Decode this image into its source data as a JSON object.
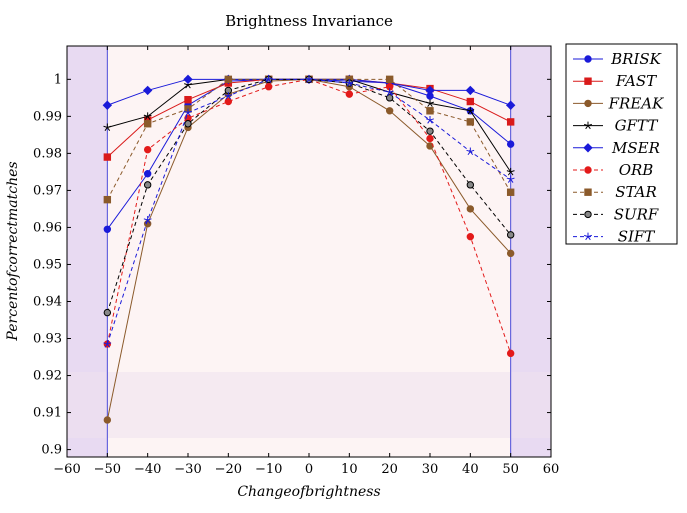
{
  "chart_data": {
    "type": "line",
    "title": "Brightness Invariance",
    "xlabel": "Changeofbrightness",
    "ylabel": "Percentofcorrectmatches",
    "xlim": [
      -60,
      60
    ],
    "ylim": [
      0.898,
      1.009
    ],
    "xticks": [
      "−60",
      "−50",
      "−40",
      "−30",
      "−20",
      "−10",
      "0",
      "10",
      "20",
      "30",
      "40",
      "50",
      "60"
    ],
    "xtick_values": [
      -60,
      -50,
      -40,
      -30,
      -20,
      -10,
      0,
      10,
      20,
      30,
      40,
      50,
      60
    ],
    "yticks": [
      "0.9",
      "0.91",
      "0.92",
      "0.93",
      "0.94",
      "0.95",
      "0.96",
      "0.97",
      "0.98",
      "0.99",
      "1"
    ],
    "ytick_values": [
      0.9,
      0.91,
      0.92,
      0.93,
      0.94,
      0.95,
      0.96,
      0.97,
      0.98,
      0.99,
      1.0
    ],
    "x": [
      -50,
      -40,
      -30,
      -20,
      -10,
      0,
      10,
      20,
      30,
      40,
      50
    ],
    "legend_position": "outside-right-top",
    "grid": false,
    "series": [
      {
        "name": "BRISK",
        "color": "#1a1ad9",
        "marker": "circle",
        "dashed": false,
        "values": [
          0.9595,
          0.9745,
          0.993,
          0.9995,
          1.0,
          1.0,
          0.9995,
          0.999,
          0.9955,
          0.9915,
          0.9825
        ]
      },
      {
        "name": "FAST",
        "color": "#d91a1a",
        "marker": "square",
        "dashed": false,
        "values": [
          0.979,
          0.989,
          0.9945,
          0.999,
          1.0,
          1.0,
          1.0,
          0.999,
          0.9975,
          0.994,
          0.9885
        ]
      },
      {
        "name": "FREAK",
        "color": "#8b5a2b",
        "marker": "circle",
        "dashed": false,
        "values": [
          0.908,
          0.961,
          0.987,
          0.996,
          0.9995,
          1.0,
          0.998,
          0.9915,
          0.982,
          0.965,
          0.953
        ]
      },
      {
        "name": "GFTT",
        "color": "#000000",
        "marker": "star",
        "dashed": false,
        "values": [
          0.987,
          0.99,
          0.9985,
          1.0,
          1.0,
          1.0,
          1.0,
          0.9965,
          0.9935,
          0.9915,
          0.975
        ]
      },
      {
        "name": "MSER",
        "color": "#1a1ad9",
        "marker": "diamond",
        "dashed": false,
        "values": [
          0.993,
          0.997,
          1.0,
          1.0,
          1.0,
          1.0,
          1.0,
          0.999,
          0.997,
          0.997,
          0.993
        ]
      },
      {
        "name": "ORB",
        "color": "#e31a1a",
        "marker": "circle",
        "dashed": true,
        "values": [
          0.9285,
          0.981,
          0.9895,
          0.994,
          0.998,
          1.0,
          0.996,
          0.998,
          0.984,
          0.9575,
          0.926
        ]
      },
      {
        "name": "STAR",
        "color": "#8b5a2b",
        "marker": "square",
        "dashed": true,
        "values": [
          0.9675,
          0.988,
          0.992,
          1.0,
          1.0,
          1.0,
          1.0,
          1.0,
          0.9915,
          0.9885,
          0.9695
        ]
      },
      {
        "name": "SURF",
        "color": "#000000",
        "marker": "circle-open",
        "dashed": true,
        "values": [
          0.937,
          0.9715,
          0.988,
          0.997,
          1.0,
          1.0,
          0.999,
          0.995,
          0.986,
          0.9715,
          0.958
        ]
      },
      {
        "name": "SIFT",
        "color": "#1a1ad9",
        "marker": "star",
        "dashed": true,
        "values": [
          0.9285,
          0.962,
          0.991,
          0.9955,
          1.0,
          1.0,
          0.999,
          0.9965,
          0.989,
          0.9805,
          0.973
        ]
      }
    ]
  }
}
